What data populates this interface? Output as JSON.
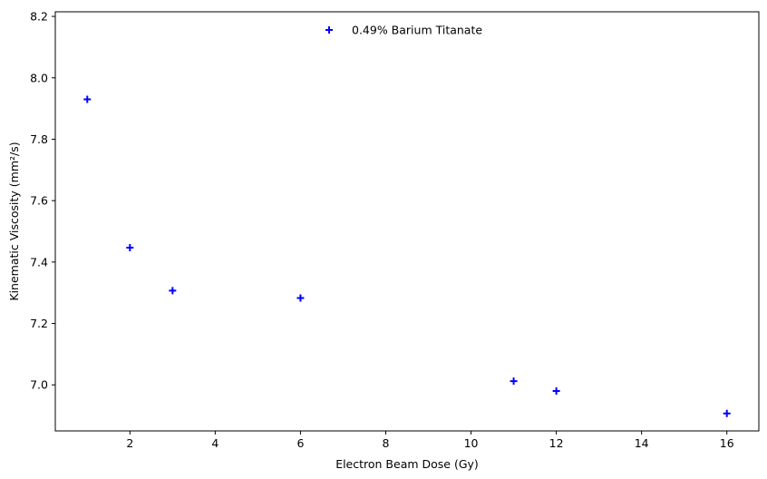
{
  "chart_data": {
    "type": "scatter",
    "title": "",
    "xlabel": "Electron Beam Dose (Gy)",
    "ylabel": "Kinematic Viscosity (mm²/s)",
    "xlim": [
      0.25,
      16.75
    ],
    "ylim": [
      6.85,
      8.215
    ],
    "xticks": [
      2,
      4,
      6,
      8,
      10,
      12,
      14,
      16
    ],
    "yticks": [
      7.0,
      7.2,
      7.4,
      7.6,
      7.8,
      8.0,
      8.2
    ],
    "ytick_labels": [
      "7.0",
      "7.2",
      "7.4",
      "7.6",
      "7.8",
      "8.0",
      "8.2"
    ],
    "grid": false,
    "legend_position": "top-center",
    "series": [
      {
        "name": "0.49% Barium Titanate",
        "marker": "plus",
        "color": "#0000ff",
        "x": [
          1,
          2,
          3,
          6,
          11,
          12,
          16
        ],
        "y": [
          7.93,
          7.447,
          7.307,
          7.283,
          7.012,
          6.98,
          6.907
        ]
      }
    ]
  }
}
